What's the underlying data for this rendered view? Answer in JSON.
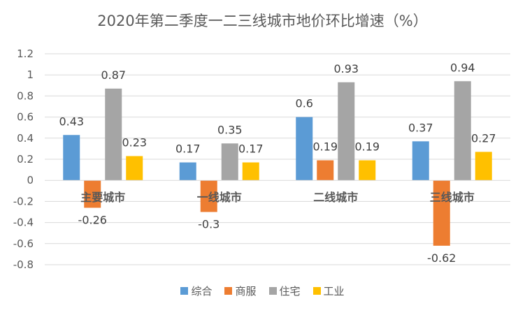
{
  "chart_data": {
    "type": "bar",
    "title": "2020年第二季度一二三线城市地价环比增速（%）",
    "categories": [
      "主要城市",
      "一线城市",
      "二线城市",
      "三线城市"
    ],
    "series": [
      {
        "name": "综合",
        "color": "#5B9BD5",
        "values": [
          0.43,
          0.17,
          0.6,
          0.37
        ]
      },
      {
        "name": "商服",
        "color": "#ED7D31",
        "values": [
          -0.26,
          -0.3,
          0.19,
          -0.62
        ]
      },
      {
        "name": "住宅",
        "color": "#A5A5A5",
        "values": [
          0.87,
          0.35,
          0.93,
          0.94
        ]
      },
      {
        "name": "工业",
        "color": "#FFC000",
        "values": [
          0.23,
          0.17,
          0.19,
          0.27
        ]
      }
    ],
    "data_labels": [
      [
        "0.43",
        "0.17",
        "0.6",
        "0.37"
      ],
      [
        "-0.26",
        "-0.3",
        "0.19",
        "-0.62"
      ],
      [
        "0.87",
        "0.35",
        "0.93",
        "0.94"
      ],
      [
        "0.23",
        "0.17",
        "0.19",
        "0.27"
      ]
    ],
    "ylim": [
      -0.8,
      1.2
    ],
    "yticks": [
      "-0.8",
      "-0.6",
      "-0.4",
      "-0.2",
      "0",
      "0.2",
      "0.4",
      "0.6",
      "0.8",
      "1",
      "1.2"
    ],
    "ytick_values": [
      -0.8,
      -0.6,
      -0.4,
      -0.2,
      0,
      0.2,
      0.4,
      0.6,
      0.8,
      1,
      1.2
    ],
    "grid": true,
    "legend_position": "bottom",
    "xlabel": "",
    "ylabel": ""
  }
}
